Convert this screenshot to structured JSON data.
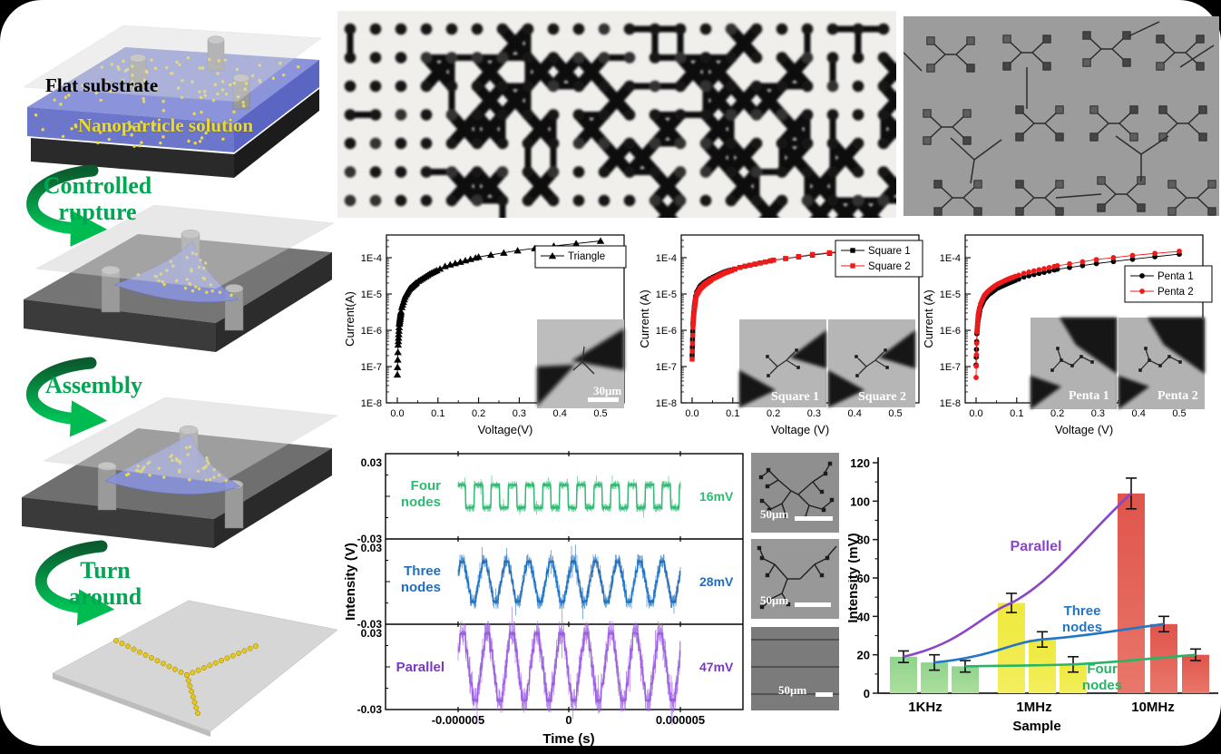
{
  "figure": {
    "background": "#000000",
    "panel_background": "#ffffff"
  },
  "process_diagram": {
    "substrate_label": "Flat substrate",
    "solution_label": "Nanoparticle solution",
    "steps": [
      {
        "line1": "Controlled",
        "line2": "rupture"
      },
      {
        "line1": "Assembly",
        "line2": ""
      },
      {
        "line1": "Turn",
        "line2": "around"
      }
    ],
    "label_colors": {
      "substrate": "#000000",
      "solution": "#ecd92e",
      "steps": "#00a651"
    }
  },
  "micrographs": {
    "percolation": {
      "description": "optical micrograph of ruptured nanoparticle network"
    },
    "device_array": {
      "description": "micrograph of Y-junction nanoparticle device array"
    },
    "strip": [
      {
        "scale_label": "50μm",
        "structure": "four-node network"
      },
      {
        "scale_label": "50μm",
        "structure": "three-node network"
      },
      {
        "scale_label": "50μm",
        "structure": "parallel lines"
      }
    ]
  },
  "chart_data": [
    {
      "id": "iv_triangle",
      "type": "line",
      "xlabel": "Voltage(V)",
      "ylabel": "Current(A)",
      "x_ticks": [
        "0.0",
        "0.1",
        "0.2",
        "0.3",
        "0.4",
        "0.5"
      ],
      "y_ticks": [
        "1E-4",
        "1E-5",
        "1E-6",
        "1E-7",
        "1E-8"
      ],
      "xlim": [
        -0.03,
        0.56
      ],
      "ylog_range": [
        1e-08,
        0.0004
      ],
      "legend_position": "top-right",
      "series": [
        {
          "name": "Triangle",
          "color": "#000000",
          "marker": "triangle",
          "V": [
            0,
            0.002,
            0.005,
            0.01,
            0.02,
            0.03,
            0.05,
            0.08,
            0.12,
            0.2,
            0.3,
            0.4,
            0.5
          ],
          "I": [
            6e-08,
            4e-07,
            1.5e-06,
            4e-06,
            9e-06,
            1.4e-05,
            2.2e-05,
            3.6e-05,
            6e-05,
            0.000105,
            0.00016,
            0.00022,
            0.00029
          ]
        }
      ],
      "inset_scale_label": "30μm"
    },
    {
      "id": "iv_square",
      "type": "line",
      "xlabel": "Voltage (V)",
      "ylabel": "Current (A)",
      "x_ticks": [
        "0.0",
        "0.1",
        "0.2",
        "0.3",
        "0.4",
        "0.5"
      ],
      "y_ticks": [
        "1E-4",
        "1E-5",
        "1E-6",
        "1E-7",
        "1E-8"
      ],
      "xlim": [
        -0.03,
        0.56
      ],
      "ylog_range": [
        1e-08,
        0.0004
      ],
      "legend_position": "top-right",
      "series": [
        {
          "name": "Square 1",
          "color": "#000000",
          "marker": "square",
          "V": [
            0,
            0.002,
            0.005,
            0.01,
            0.02,
            0.03,
            0.05,
            0.08,
            0.12,
            0.2,
            0.3,
            0.4,
            0.5
          ],
          "I": [
            2e-07,
            1.5e-06,
            4e-06,
            1e-05,
            1.6e-05,
            2e-05,
            2.8e-05,
            4e-05,
            5.5e-05,
            8.5e-05,
            0.00012,
            0.000155,
            0.00019
          ]
        },
        {
          "name": "Square 2",
          "color": "#ee1b1b",
          "marker": "square",
          "V": [
            0,
            0.002,
            0.005,
            0.01,
            0.02,
            0.03,
            0.05,
            0.08,
            0.12,
            0.2,
            0.3,
            0.4,
            0.5
          ],
          "I": [
            1.6e-07,
            1.2e-06,
            3.5e-06,
            9e-06,
            1.4e-05,
            1.8e-05,
            2.6e-05,
            3.8e-05,
            5.5e-05,
            8.5e-05,
            0.000125,
            0.00016,
            0.0002
          ]
        }
      ],
      "inset_labels": [
        "Square 1",
        "Square 2"
      ]
    },
    {
      "id": "iv_penta",
      "type": "line",
      "xlabel": "Voltage (V)",
      "ylabel": "Current (A)",
      "x_ticks": [
        "0.0",
        "0.1",
        "0.2",
        "0.3",
        "0.4",
        "0.5"
      ],
      "y_ticks": [
        "1E-4",
        "1E-5",
        "1E-6",
        "1E-7",
        "1E-8"
      ],
      "xlim": [
        -0.03,
        0.56
      ],
      "ylog_range": [
        1e-08,
        0.0004
      ],
      "legend_position": "right",
      "series": [
        {
          "name": "Penta 1",
          "color": "#000000",
          "marker": "circle",
          "V": [
            0,
            0.002,
            0.005,
            0.01,
            0.02,
            0.03,
            0.05,
            0.08,
            0.12,
            0.2,
            0.3,
            0.4,
            0.5
          ],
          "I": [
            1.1e-07,
            8e-07,
            2e-06,
            4e-06,
            7e-06,
            9.5e-06,
            1.4e-05,
            2e-05,
            3e-05,
            4.8e-05,
            7e-05,
            9.5e-05,
            0.000125
          ]
        },
        {
          "name": "Penta 2",
          "color": "#ee1b1b",
          "marker": "circle",
          "V": [
            0,
            0.002,
            0.005,
            0.01,
            0.02,
            0.03,
            0.05,
            0.08,
            0.12,
            0.2,
            0.3,
            0.4,
            0.5
          ],
          "I": [
            5e-08,
            9e-07,
            2.5e-06,
            5e-06,
            9e-06,
            1.2e-05,
            1.8e-05,
            2.6e-05,
            3.8e-05,
            6e-05,
            9e-05,
            0.00012,
            0.00015
          ]
        }
      ],
      "inset_labels": [
        "Penta 1",
        "Penta 2"
      ]
    },
    {
      "id": "oscilloscope",
      "type": "line",
      "xlabel": "Time (s)",
      "ylabel": "Intensity (V)",
      "x_ticks": [
        "-0.000005",
        "0",
        "0.000005"
      ],
      "panel_y_ticks": [
        "0.03",
        "-0.03"
      ],
      "ylim_per_panel": [
        -0.03,
        0.03
      ],
      "panels": [
        {
          "name_lines": [
            "Four",
            "nodes"
          ],
          "color": "#2dbb72",
          "label_color": "#2dbb72",
          "value_label": "16mV",
          "amplitude_mV_pp": 16,
          "cycles": 13,
          "quant_levels": 1
        },
        {
          "name_lines": [
            "Three",
            "nodes"
          ],
          "color": "#1d6fc0",
          "label_color": "#1d6fc0",
          "value_label": "28mV",
          "amplitude_mV_pp": 28,
          "cycles": 10,
          "quant_levels": 2
        },
        {
          "name_lines": [
            "Parallel"
          ],
          "color": "#9a5ce0",
          "label_color": "#7d35c8",
          "value_label": "47mV",
          "amplitude_mV_pp": 47,
          "cycles": 9,
          "quant_levels": 2
        }
      ]
    },
    {
      "id": "intensity_bars",
      "type": "bar",
      "xlabel": "Sample",
      "ylabel": "Intensity (mV)",
      "categories": [
        "1KHz",
        "1MHz",
        "10MHz"
      ],
      "y_ticks": [
        0,
        20,
        40,
        60,
        80,
        100,
        120
      ],
      "ylim": [
        0,
        120
      ],
      "groups": [
        {
          "category": "1KHz",
          "values": [
            19,
            16,
            14
          ],
          "errors": [
            3,
            4,
            3
          ],
          "color_top": "#8ed48e",
          "color_bottom": "#aede9d"
        },
        {
          "category": "1MHz",
          "values": [
            47,
            28,
            15
          ],
          "errors": [
            5,
            4,
            4
          ],
          "color_top": "#efe93c",
          "color_bottom": "#f3ee5e"
        },
        {
          "category": "10MHz",
          "values": [
            104,
            36,
            20
          ],
          "errors": [
            8,
            4,
            3
          ],
          "color_top": "#e0544b",
          "color_bottom": "#e8776a"
        }
      ],
      "lines": [
        {
          "name_lines": [
            "Parallel"
          ],
          "color": "#8a46c8",
          "values": [
            19,
            47,
            104
          ]
        },
        {
          "name_lines": [
            "Three",
            "nodes"
          ],
          "color": "#2176c7",
          "values": [
            16,
            28,
            36
          ]
        },
        {
          "name_lines": [
            "Four",
            "nodes"
          ],
          "color": "#27b565",
          "values": [
            14,
            15,
            20
          ]
        }
      ]
    }
  ]
}
